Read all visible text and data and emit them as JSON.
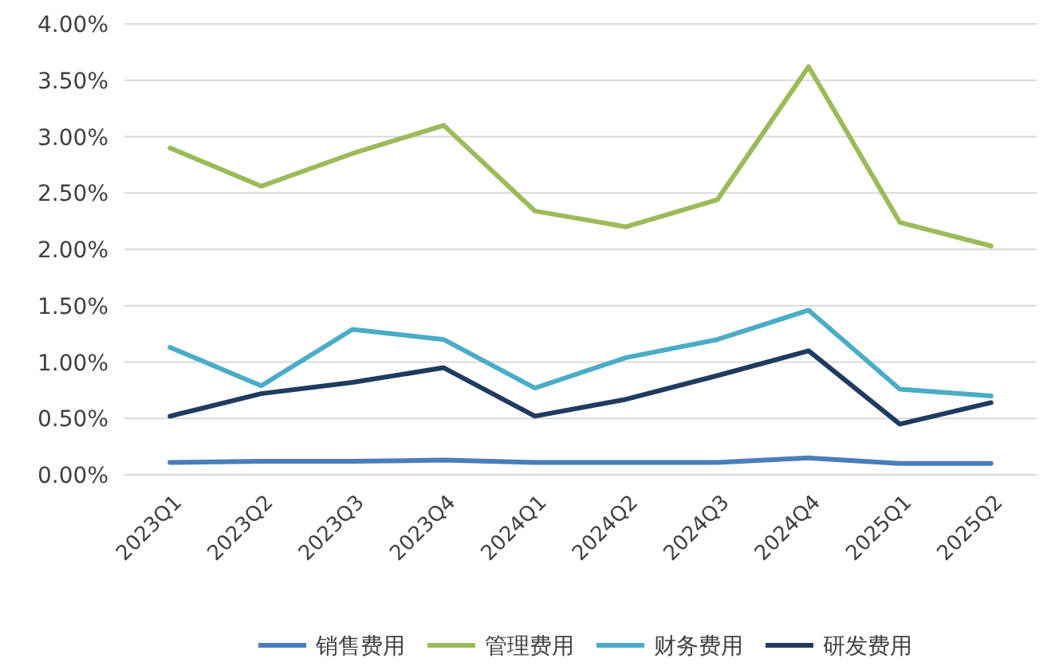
{
  "chart_data": {
    "type": "line",
    "categories": [
      "2023Q1",
      "2023Q2",
      "2023Q3",
      "2023Q4",
      "2024Q1",
      "2024Q2",
      "2024Q3",
      "2024Q4",
      "2025Q1",
      "2025Q2"
    ],
    "series": [
      {
        "name": "销售费用",
        "color": "#4a7ebb",
        "values": [
          0.11,
          0.12,
          0.12,
          0.13,
          0.11,
          0.11,
          0.11,
          0.15,
          0.1,
          0.1
        ]
      },
      {
        "name": "管理费用",
        "color": "#9bbb59",
        "values": [
          2.9,
          2.56,
          2.85,
          3.1,
          2.34,
          2.2,
          2.44,
          3.62,
          2.24,
          2.03
        ]
      },
      {
        "name": "财务费用",
        "color": "#4bacc6",
        "values": [
          1.13,
          0.79,
          1.29,
          1.2,
          0.77,
          1.04,
          1.2,
          1.46,
          0.76,
          0.7
        ]
      },
      {
        "name": "研发费用",
        "color": "#1f3b5f",
        "values": [
          0.52,
          0.72,
          0.82,
          0.95,
          0.52,
          0.67,
          0.88,
          1.1,
          0.45,
          0.64
        ]
      }
    ],
    "ylim": [
      0,
      4
    ],
    "yticks": [
      {
        "value": 0,
        "label": "0.00%"
      },
      {
        "value": 0.5,
        "label": "0.50%"
      },
      {
        "value": 1,
        "label": "1.00%"
      },
      {
        "value": 1.5,
        "label": "1.50%"
      },
      {
        "value": 2,
        "label": "2.00%"
      },
      {
        "value": 2.5,
        "label": "2.50%"
      },
      {
        "value": 3,
        "label": "3.00%"
      },
      {
        "value": 3.5,
        "label": "3.50%"
      },
      {
        "value": 4,
        "label": "4.00%"
      }
    ],
    "grid": "y",
    "legend": "bottom",
    "marker": "none",
    "line_style": "solid"
  }
}
